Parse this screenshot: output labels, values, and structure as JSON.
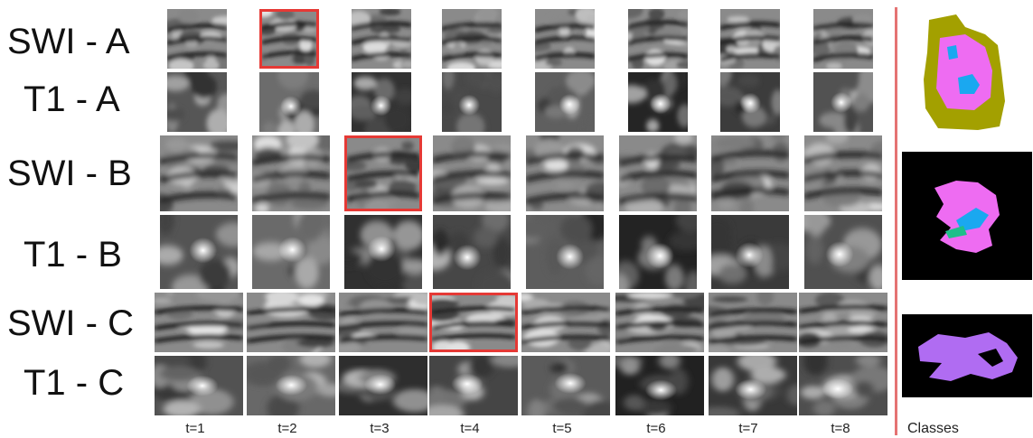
{
  "rows": [
    {
      "id": "swi-a",
      "label": "SWI - A",
      "type": "swi",
      "highlight": 2
    },
    {
      "id": "t1-a",
      "label": "T1 - A",
      "type": "t1",
      "highlight": null
    },
    {
      "id": "swi-b",
      "label": "SWI - B",
      "type": "swi",
      "highlight": 3
    },
    {
      "id": "t1-b",
      "label": "T1 - B",
      "type": "t1",
      "highlight": null
    },
    {
      "id": "swi-c",
      "label": "SWI - C",
      "type": "swi",
      "highlight": 4
    },
    {
      "id": "t1-c",
      "label": "T1 - C",
      "type": "t1",
      "highlight": null
    }
  ],
  "timepoints": [
    "t=1",
    "t=2",
    "t=3",
    "t=4",
    "t=5",
    "t=6",
    "t=7",
    "t=8"
  ],
  "classes_label": "Classes",
  "colors": {
    "highlight": "#e53935",
    "divider": "#e57373",
    "class_olive": "#a3a000",
    "class_magenta": "#ee6cf2",
    "class_cyan": "#1aa8f0",
    "class_green": "#1fbf8a",
    "class_violet": "#b06cf2"
  }
}
